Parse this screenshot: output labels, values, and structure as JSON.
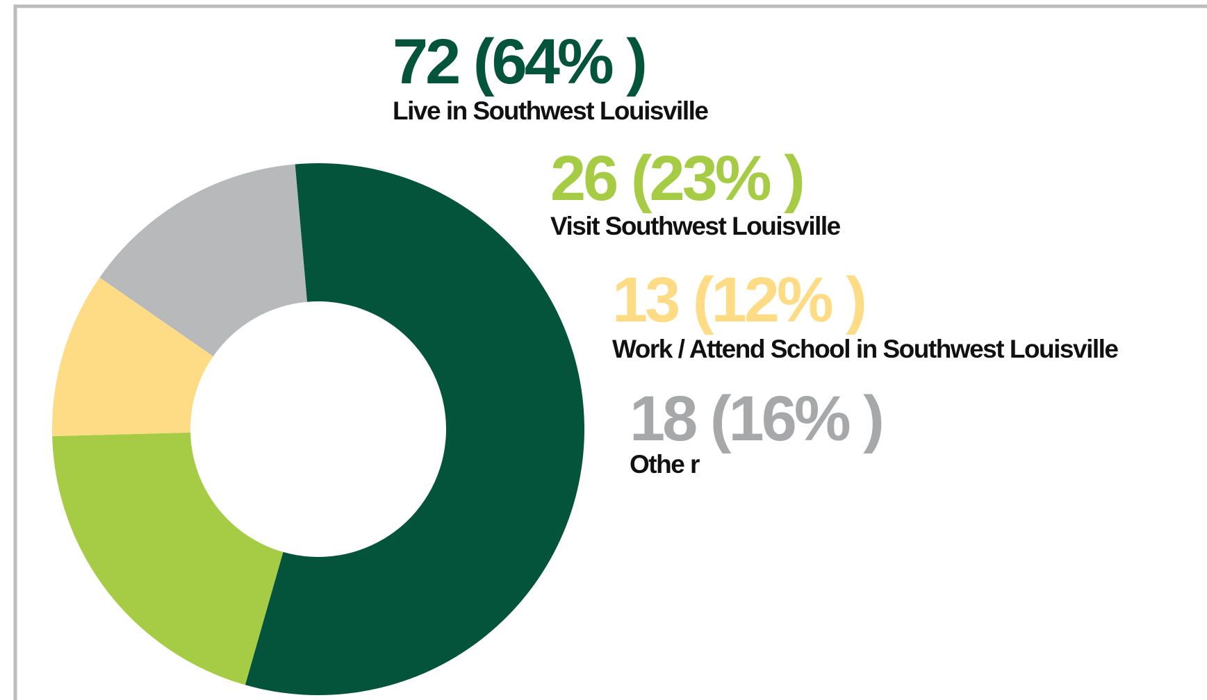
{
  "chart_data": {
    "type": "donut",
    "categories": [
      "Live in Southwest Louisville",
      "Visit Southwest Louisville",
      "Work / Attend School in Southwest Louisville",
      "Othe r"
    ],
    "values": [
      72,
      26,
      13,
      18
    ],
    "value_labels": [
      "72 (64% )",
      "26 (23% )",
      "13 (12% )",
      "18 (16% )"
    ],
    "colors": [
      "#04533b",
      "#a6cc46",
      "#fddc85",
      "#b8b9bb"
    ]
  }
}
